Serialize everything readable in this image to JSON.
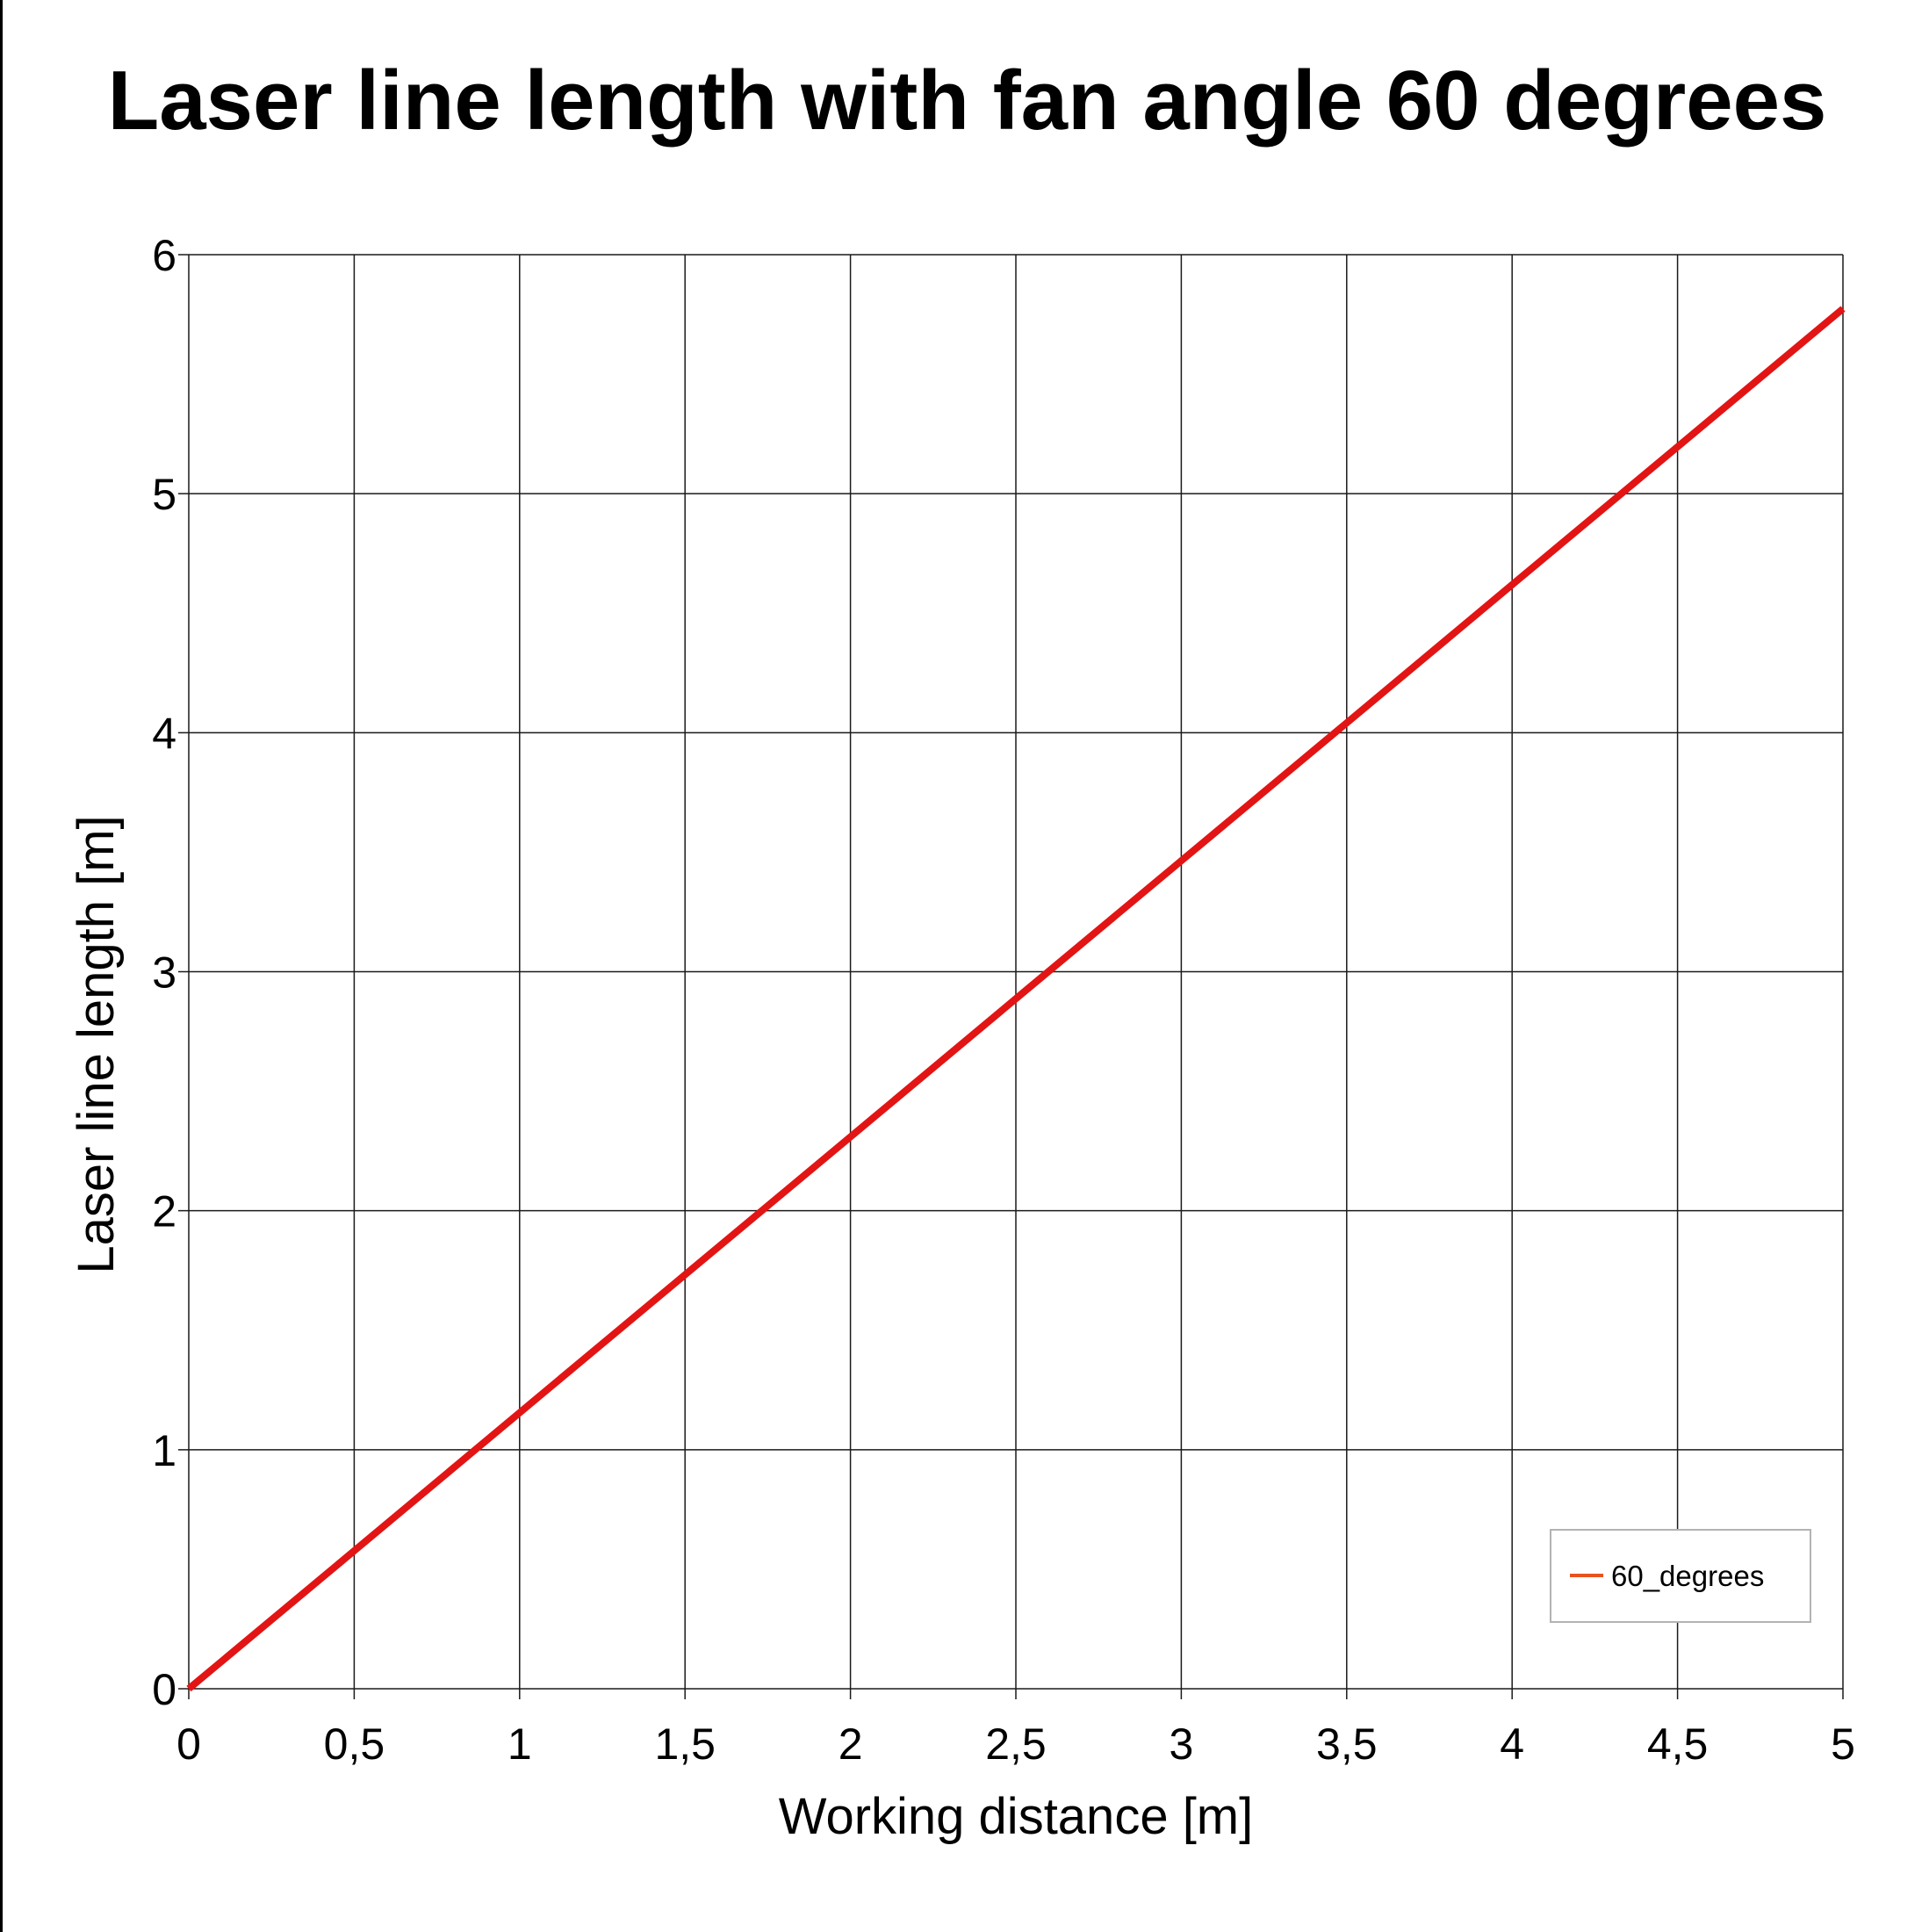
{
  "chart_data": {
    "type": "line",
    "title": "Laser line length with fan angle 60 degrees",
    "xlabel": "Working distance [m]",
    "ylabel": "Laser line length [m]",
    "xlim": [
      0,
      5
    ],
    "ylim": [
      0,
      6
    ],
    "xticks": [
      0,
      0.5,
      1,
      1.5,
      2,
      2.5,
      3,
      3.5,
      4,
      4.5,
      5
    ],
    "xtick_labels": [
      "0",
      "0,5",
      "1",
      "1,5",
      "2",
      "2,5",
      "3",
      "3,5",
      "4",
      "4,5",
      "5"
    ],
    "yticks": [
      0,
      1,
      2,
      3,
      4,
      5,
      6
    ],
    "ytick_labels": [
      "0",
      "1",
      "2",
      "3",
      "4",
      "5",
      "6"
    ],
    "grid": true,
    "legend_position": "bottom-right",
    "series": [
      {
        "name": "60_degrees",
        "color": "#e31414",
        "legend_color": "#e8521e",
        "x": [
          0,
          0.5,
          1,
          1.5,
          2,
          2.5,
          3,
          3.5,
          4,
          4.5,
          5
        ],
        "y": [
          0,
          0.577,
          1.155,
          1.732,
          2.309,
          2.887,
          3.464,
          4.041,
          4.619,
          5.196,
          5.774
        ]
      }
    ]
  }
}
